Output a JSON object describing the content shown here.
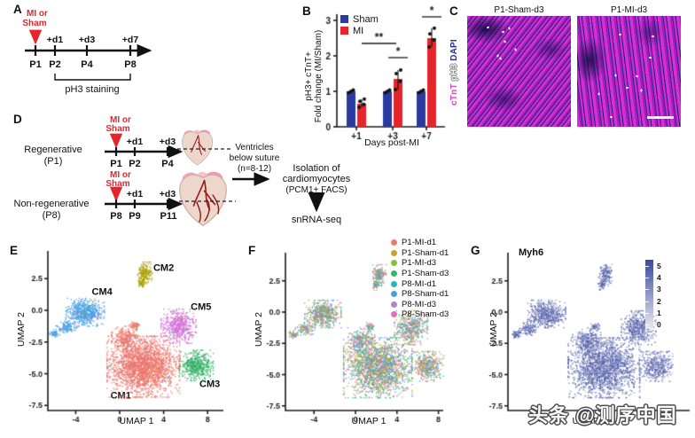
{
  "figure": {
    "bg": "#ffffff",
    "ink": "#1a1a1a",
    "accent_red": "#E5252B"
  },
  "panels": {
    "A": {
      "letter": "A",
      "treatment_line1": "MI or",
      "treatment_line2": "Sham",
      "timeline": {
        "top_labels": [
          "",
          "+d1",
          "+d3",
          "+d7"
        ],
        "bottom_labels": [
          "P1",
          "P2",
          "P4",
          "P8"
        ]
      },
      "bracket_label": "pH3 staining"
    },
    "B": {
      "letter": "B"
    },
    "C": {
      "letter": "C",
      "image_titles": [
        "P1-Sham-d3",
        "P1-MI-d3"
      ],
      "stain_labels": [
        {
          "text": "cTnT",
          "color": "#E23CCB"
        },
        {
          "text": "pH3",
          "color": "#f4f4f4"
        },
        {
          "text": "DAPI",
          "color": "#2E3192"
        }
      ],
      "speck_counts": [
        7,
        9
      ]
    },
    "D": {
      "letter": "D",
      "rows": [
        {
          "group_label": "Regenerative",
          "group_sub": "(P1)",
          "treatment_line1": "MI or",
          "treatment_line2": "Sham",
          "top_labels": [
            "",
            "+d1",
            "+d3"
          ],
          "bottom_labels": [
            "P1",
            "P2",
            "P4"
          ]
        },
        {
          "group_label": "Non-regenerative",
          "group_sub": "(P8)",
          "treatment_line1": "MI or",
          "treatment_line2": "Sham",
          "top_labels": [
            "",
            "+d1",
            "+d3"
          ],
          "bottom_labels": [
            "P8",
            "P9",
            "P11"
          ]
        }
      ],
      "flow": {
        "ventricles_lines": [
          "Ventricles",
          "below suture",
          "(n=8-12)"
        ],
        "isolation_lines": [
          "Isolation of",
          "cardiomyocytes",
          "(PCM1+ FACS)"
        ],
        "final_step": "snRNA-seq"
      }
    },
    "E": {
      "letter": "E"
    },
    "F": {
      "letter": "F"
    },
    "G": {
      "letter": "G"
    },
    "watermark": "头条 @测序中国"
  },
  "chart_data": [
    {
      "panel": "B",
      "type": "bar",
      "categories": [
        "+1",
        "+3",
        "+7"
      ],
      "series": [
        {
          "name": "Sham",
          "color": "#2B3A9E",
          "values": [
            1.0,
            1.0,
            1.0
          ]
        },
        {
          "name": "MI",
          "color": "#E5252B",
          "values": [
            0.65,
            1.35,
            2.5
          ]
        }
      ],
      "dot_values": {
        "Sham": [
          [
            0.96,
            1.0,
            1.04
          ],
          [
            0.96,
            1.0,
            1.04
          ],
          [
            0.96,
            1.0,
            1.04
          ]
        ],
        "MI": [
          [
            0.55,
            0.63,
            0.72,
            0.78
          ],
          [
            1.05,
            1.28,
            1.5,
            1.6
          ],
          [
            2.25,
            2.45,
            2.62,
            2.78
          ]
        ]
      },
      "ylabel_lines": [
        "pH3+ cTnT+",
        "Fold change (MI/Sham)"
      ],
      "xlabel": "Days post-MI",
      "ylim": [
        0,
        3
      ],
      "yticks": [
        "0",
        "1",
        "2",
        "3"
      ],
      "significance": [
        {
          "label": "**",
          "group_from": 0,
          "group_to": 1,
          "y": 2.35
        },
        {
          "label": "*",
          "group_from": 1,
          "group_to": 1,
          "y": 1.95
        },
        {
          "label": "*",
          "group_from": 2,
          "group_to": 2,
          "y": 3.1
        }
      ],
      "legend_position": "top-left",
      "grid": false
    },
    {
      "panel": "E",
      "type": "scatter",
      "xlabel": "UMAP 1",
      "ylabel": "UMAP 2",
      "xlim": [
        -6.4,
        9.3
      ],
      "ylim": [
        -8.4,
        4.6
      ],
      "xtick_labels": [
        "-4",
        "0",
        "4",
        "8"
      ],
      "xtick_values": [
        -4,
        0,
        4,
        8
      ],
      "ytick_labels": [
        "2.5",
        "0.0",
        "-2.5",
        "-5.0",
        "-7.5"
      ],
      "ytick_values": [
        2.5,
        0,
        -2.5,
        -5,
        -7.5
      ],
      "clusters": [
        {
          "name": "CM1",
          "color": "#F0756C",
          "label_at": [
            0.1,
            -6.8
          ]
        },
        {
          "name": "CM2",
          "color": "#AFA400",
          "label_at": [
            4.0,
            3.3
          ]
        },
        {
          "name": "CM3",
          "color": "#2EB364",
          "label_at": [
            8.2,
            -5.9
          ]
        },
        {
          "name": "CM4",
          "color": "#4AA2E6",
          "label_at": [
            -1.6,
            1.4
          ]
        },
        {
          "name": "CM5",
          "color": "#D66FDC",
          "label_at": [
            7.4,
            0.2
          ]
        }
      ],
      "mix_rate": 0.06,
      "grid": false
    },
    {
      "panel": "F",
      "type": "scatter",
      "xlabel": "UMAP 1",
      "ylabel": "UMAP 2",
      "xlim": [
        -6.8,
        9.4
      ],
      "ylim": [
        -8.4,
        4.6
      ],
      "xtick_labels": [
        "-4",
        "0",
        "4",
        "8"
      ],
      "xtick_values": [
        -4,
        0,
        4,
        8
      ],
      "ytick_labels": [
        "2.5",
        "0.0",
        "-2.5",
        "-5.0",
        "-7.5"
      ],
      "ytick_values": [
        2.5,
        0,
        -2.5,
        -5,
        -7.5
      ],
      "samples": [
        {
          "name": "P1-MI-d1",
          "color": "#E87D6F"
        },
        {
          "name": "P1-Sham-d1",
          "color": "#C9A22B"
        },
        {
          "name": "P1-MI-d3",
          "color": "#86BE3E"
        },
        {
          "name": "P1-Sham-d3",
          "color": "#35B46A"
        },
        {
          "name": "P8-MI-d1",
          "color": "#2CB5C0"
        },
        {
          "name": "P8-Sham-d1",
          "color": "#4A9FD8"
        },
        {
          "name": "P8-MI-d3",
          "color": "#A78BC8"
        },
        {
          "name": "P8-Sham-d3",
          "color": "#E26FC2"
        }
      ],
      "legend_position": "top-right",
      "grid": false
    },
    {
      "panel": "G",
      "type": "scatter",
      "title": "Myh6",
      "xlabel": "UMAP 1",
      "ylabel": "UMAP 2",
      "xlim": [
        -6.8,
        10.0
      ],
      "ylim": [
        -8.4,
        4.6
      ],
      "xtick_labels": [
        "-4"
      ],
      "xtick_values": [
        -4
      ],
      "ytick_labels": [
        "2.5",
        "0.0",
        "-2.5",
        "-5.0",
        "-7.5"
      ],
      "ytick_values": [
        2.5,
        0,
        -2.5,
        -5,
        -7.5
      ],
      "colorbar": {
        "tick_labels": [
          "5",
          "4",
          "3",
          "2",
          "1",
          "0"
        ],
        "high": "#3B4A9E",
        "low": "#E9E9F0"
      },
      "grid": false
    }
  ],
  "umap_shape": {
    "blobs": [
      {
        "cluster": "CM1",
        "c": [
          2.1,
          -4.4
        ],
        "r": [
          3.3,
          2.4
        ],
        "n": 2300
      },
      {
        "cluster": "CM1",
        "c": [
          0.5,
          -2.2
        ],
        "r": [
          1.3,
          1.0
        ],
        "n": 300
      },
      {
        "cluster": "CM1",
        "c": [
          1.3,
          -1.15
        ],
        "r": [
          0.45,
          0.35
        ],
        "n": 60
      },
      {
        "cluster": "CM2",
        "c": [
          2.25,
          3.0
        ],
        "r": [
          0.65,
          0.85
        ],
        "n": 200
      },
      {
        "cluster": "CM2",
        "c": [
          1.9,
          2.2
        ],
        "r": [
          0.3,
          0.4
        ],
        "n": 60
      },
      {
        "cluster": "CM3",
        "c": [
          6.9,
          -4.3
        ],
        "r": [
          1.55,
          1.2
        ],
        "n": 500
      },
      {
        "cluster": "CM4",
        "c": [
          -3.2,
          -0.1
        ],
        "r": [
          1.75,
          1.1
        ],
        "n": 640
      },
      {
        "cluster": "CM4",
        "c": [
          -4.9,
          -1.3
        ],
        "r": [
          0.95,
          0.5
        ],
        "n": 140
      },
      {
        "cluster": "CM4",
        "c": [
          -6.0,
          -1.75
        ],
        "r": [
          0.5,
          0.3
        ],
        "n": 60
      },
      {
        "cluster": "CM5",
        "c": [
          5.3,
          -1.2
        ],
        "r": [
          1.6,
          1.35
        ],
        "n": 550
      }
    ]
  }
}
